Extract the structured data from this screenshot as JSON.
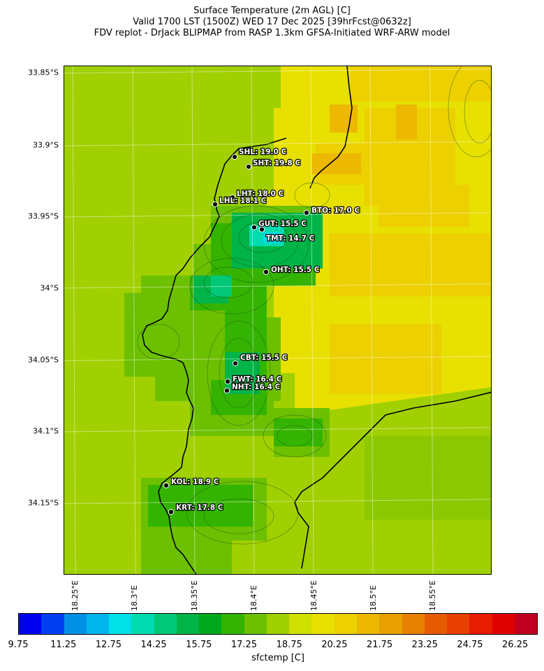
{
  "title": {
    "line1": "Surface Temperature (2m AGL) [C]",
    "line2": "Valid 1700 LST (1500Z) WED 17 Dec 2025 [39hrFcst@0632z]",
    "line3": "FDV replot - DrJack BLIPMAP from RASP 1.3km GFSA-Initiated WRF-ARW model"
  },
  "axes": {
    "lat_ticks": [
      "33.85°S",
      "33.9°S",
      "33.95°S",
      "34°S",
      "34.05°S",
      "34.1°S",
      "34.15°S"
    ],
    "lon_ticks": [
      "18.25°E",
      "18.3°E",
      "18.35°E",
      "18.4°E",
      "18.45°E",
      "18.5°E",
      "18.55°E"
    ]
  },
  "stations": [
    {
      "code": "SHL",
      "label": "SHL: 19.0 C",
      "temp_c": 19.0
    },
    {
      "code": "SHT",
      "label": "SHT: 19.8 C",
      "temp_c": 19.8
    },
    {
      "code": "LHT",
      "label": "LHT: 18.0 C",
      "temp_c": 18.0
    },
    {
      "code": "LHL",
      "label": "LHL: 18.1 C",
      "temp_c": 18.1
    },
    {
      "code": "BTO",
      "label": "BTO: 17.0 C",
      "temp_c": 17.0
    },
    {
      "code": "GUT",
      "label": "GUT: 15.5 C",
      "temp_c": 15.5
    },
    {
      "code": "TMT",
      "label": "TMT: 14.7 C",
      "temp_c": 14.7
    },
    {
      "code": "OHT",
      "label": "OHT: 15.5 C",
      "temp_c": 15.5
    },
    {
      "code": "CBT",
      "label": "CBT: 15.5 C",
      "temp_c": 15.5
    },
    {
      "code": "FWT",
      "label": "FWT: 16.4 C",
      "temp_c": 16.4
    },
    {
      "code": "NHT",
      "label": "NHT: 16.4 C",
      "temp_c": 16.4
    },
    {
      "code": "KOL",
      "label": "KOL: 18.9 C",
      "temp_c": 18.9
    },
    {
      "code": "KRT",
      "label": "KRT: 17.8 C",
      "temp_c": 17.8
    }
  ],
  "colorbar": {
    "label": "sfctemp [C]",
    "ticks": [
      "9.75",
      "11.25",
      "12.75",
      "14.25",
      "15.75",
      "17.25",
      "18.75",
      "20.25",
      "21.75",
      "23.25",
      "24.75",
      "26.25"
    ],
    "colors": [
      "#0000f0",
      "#0040f0",
      "#0090e8",
      "#00b4ec",
      "#00e0e8",
      "#00dcb0",
      "#00c878",
      "#00b448",
      "#00a81c",
      "#34b400",
      "#6cc000",
      "#a0d000",
      "#d0e000",
      "#e8e000",
      "#ecd000",
      "#ecb800",
      "#e8a000",
      "#e88000",
      "#e85c00",
      "#e84000",
      "#e81c00",
      "#e00000",
      "#c00020"
    ]
  },
  "map_colors": {
    "land_base": "#a0d000",
    "warm_inland": "#e8e000",
    "hot_inland": "#ecd000",
    "cool_ridge": "#6cc000",
    "cold_peak": "#34b400",
    "coldest_peak": "#00b448",
    "table_mountain": "#00dcb0"
  }
}
